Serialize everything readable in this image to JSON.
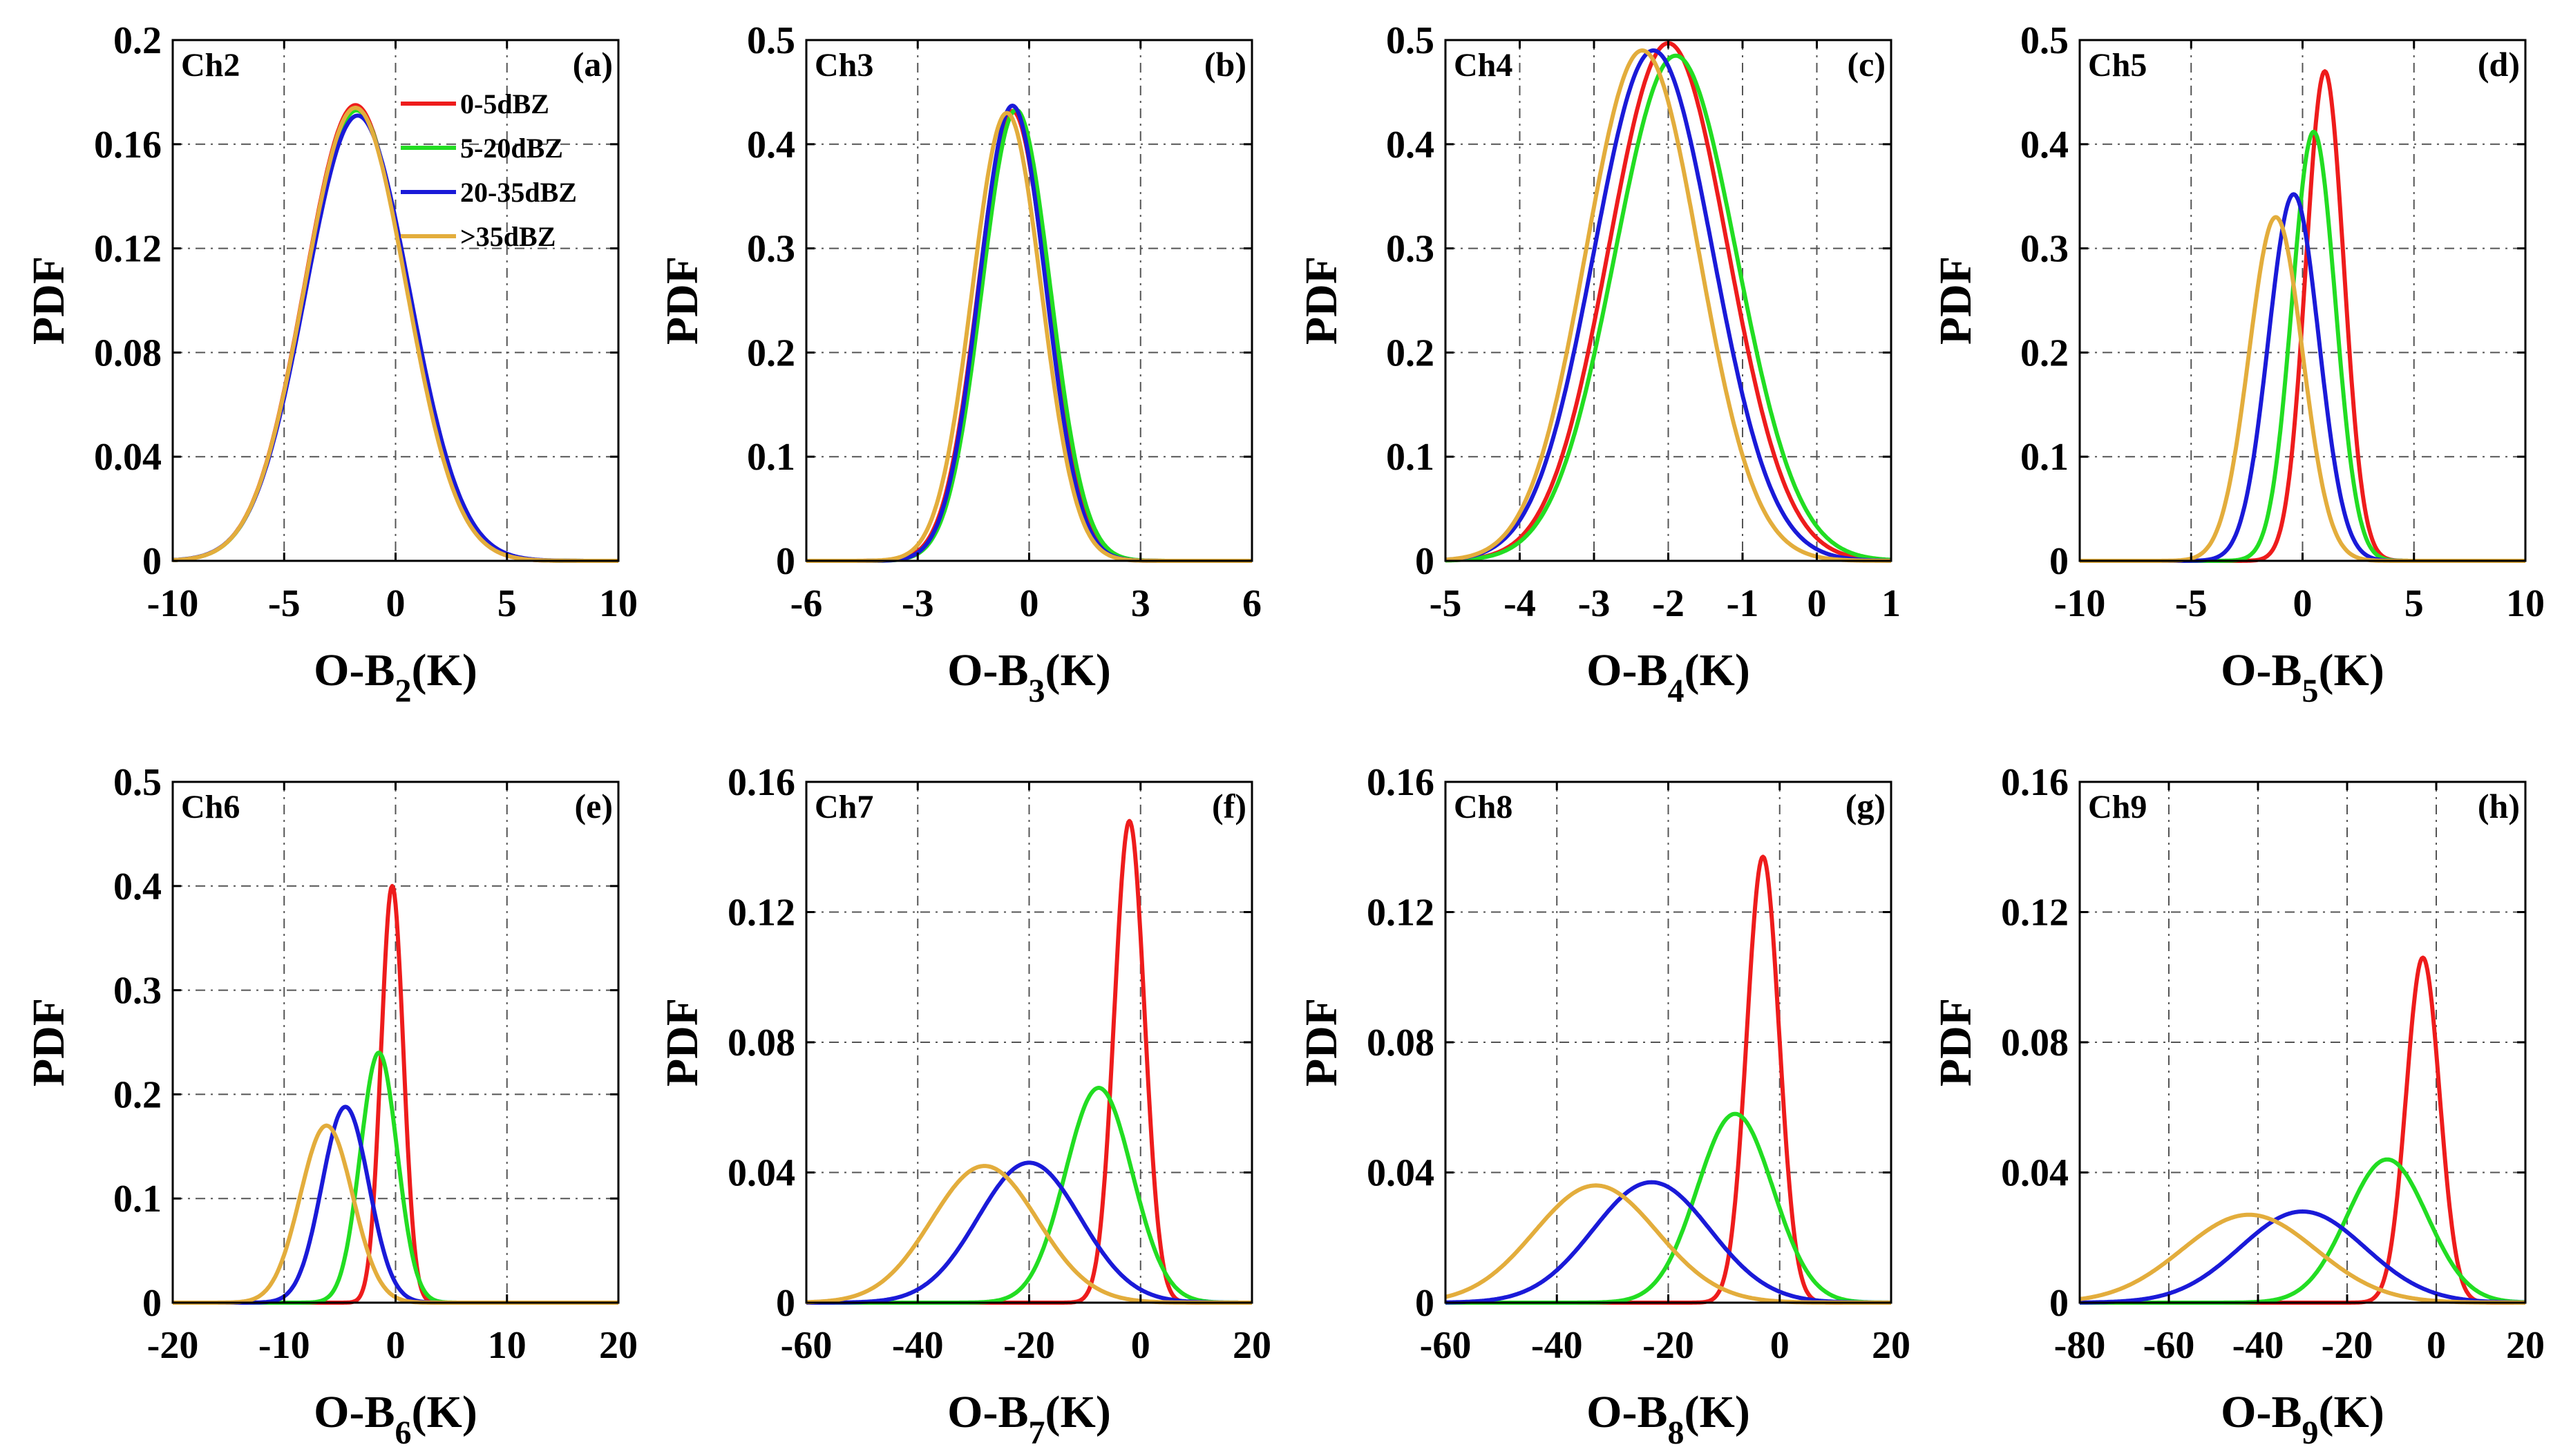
{
  "legend": [
    {
      "label": "0-5dBZ",
      "color": "#ee1c1c"
    },
    {
      "label": "5-20dBZ",
      "color": "#22dd22"
    },
    {
      "label": "20-35dBZ",
      "color": "#1a1ad8"
    },
    {
      "label": ">35dBZ",
      "color": "#e3ad3c"
    }
  ],
  "chart_data": [
    {
      "type": "line",
      "title": "Ch2",
      "panel": "(a)",
      "xlabel": "O-B",
      "xsub": "2",
      "xunit": "(K)",
      "ylabel": "PDF",
      "xlim": [
        -10,
        10
      ],
      "ylim": [
        0,
        0.2
      ],
      "xticks": [
        -10,
        -5,
        0,
        5,
        10
      ],
      "xtick_labels": [
        "-10",
        "-5",
        "0",
        "5",
        "10"
      ],
      "yticks": [
        0,
        0.04,
        0.08,
        0.12,
        0.16,
        0.2
      ],
      "ytick_labels": [
        "0",
        "0.04",
        "0.08",
        "0.12",
        "0.16",
        "0.2"
      ],
      "legend_shown": true,
      "series": [
        {
          "name": "0-5dBZ",
          "mean": -1.8,
          "sd": 2.28,
          "peak": 0.175
        },
        {
          "name": "5-20dBZ",
          "mean": -1.75,
          "sd": 2.3,
          "peak": 0.173
        },
        {
          "name": "20-35dBZ",
          "mean": -1.7,
          "sd": 2.33,
          "peak": 0.171
        },
        {
          "name": ">35dBZ",
          "mean": -1.8,
          "sd": 2.28,
          "peak": 0.174
        }
      ]
    },
    {
      "type": "line",
      "title": "Ch3",
      "panel": "(b)",
      "xlabel": "O-B",
      "xsub": "3",
      "xunit": "(K)",
      "ylabel": "PDF",
      "xlim": [
        -6,
        6
      ],
      "ylim": [
        0,
        0.5
      ],
      "xticks": [
        -6,
        -3,
        0,
        3,
        6
      ],
      "xtick_labels": [
        "-6",
        "-3",
        "0",
        "3",
        "6"
      ],
      "yticks": [
        0,
        0.1,
        0.2,
        0.3,
        0.4,
        0.5
      ],
      "ytick_labels": [
        "0",
        "0.1",
        "0.2",
        "0.3",
        "0.4",
        "0.5"
      ],
      "legend_shown": false,
      "series": [
        {
          "name": "0-5dBZ",
          "mean": -0.45,
          "sd": 0.92,
          "peak": 0.432
        },
        {
          "name": "5-20dBZ",
          "mean": -0.35,
          "sd": 0.92,
          "peak": 0.433
        },
        {
          "name": "20-35dBZ",
          "mean": -0.45,
          "sd": 0.9,
          "peak": 0.437
        },
        {
          "name": ">35dBZ",
          "mean": -0.6,
          "sd": 0.93,
          "peak": 0.43
        }
      ]
    },
    {
      "type": "line",
      "title": "Ch4",
      "panel": "(c)",
      "xlabel": "O-B",
      "xsub": "4",
      "xunit": "(K)",
      "ylabel": "PDF",
      "xlim": [
        -5,
        1
      ],
      "ylim": [
        0,
        0.5
      ],
      "xticks": [
        -5,
        -4,
        -3,
        -2,
        -1,
        0,
        1
      ],
      "xtick_labels": [
        "-5",
        "-4",
        "-3",
        "-2",
        "-1",
        "0",
        "1"
      ],
      "yticks": [
        0,
        0.1,
        0.2,
        0.3,
        0.4,
        0.5
      ],
      "ytick_labels": [
        "0",
        "0.1",
        "0.2",
        "0.3",
        "0.4",
        "0.5"
      ],
      "legend_shown": false,
      "series": [
        {
          "name": "0-5dBZ",
          "mean": -2.0,
          "sd": 0.8,
          "peak": 0.497
        },
        {
          "name": "5-20dBZ",
          "mean": -1.9,
          "sd": 0.82,
          "peak": 0.485
        },
        {
          "name": "20-35dBZ",
          "mean": -2.2,
          "sd": 0.8,
          "peak": 0.49
        },
        {
          "name": ">35dBZ",
          "mean": -2.35,
          "sd": 0.76,
          "peak": 0.49
        }
      ]
    },
    {
      "type": "line",
      "title": "Ch5",
      "panel": "(d)",
      "xlabel": "O-B",
      "xsub": "5",
      "xunit": "(K)",
      "ylabel": "PDF",
      "xlim": [
        -10,
        10
      ],
      "ylim": [
        0,
        0.5
      ],
      "xticks": [
        -10,
        -5,
        0,
        5,
        10
      ],
      "xtick_labels": [
        "-10",
        "-5",
        "0",
        "5",
        "10"
      ],
      "yticks": [
        0,
        0.1,
        0.2,
        0.3,
        0.4,
        0.5
      ],
      "ytick_labels": [
        "0",
        "0.1",
        "0.2",
        "0.3",
        "0.4",
        "0.5"
      ],
      "legend_shown": false,
      "series": [
        {
          "name": "0-5dBZ",
          "mean": 1.0,
          "sd": 0.85,
          "peak": 0.47
        },
        {
          "name": "5-20dBZ",
          "mean": 0.5,
          "sd": 0.97,
          "peak": 0.412
        },
        {
          "name": "20-35dBZ",
          "mean": -0.4,
          "sd": 1.13,
          "peak": 0.352
        },
        {
          "name": ">35dBZ",
          "mean": -1.2,
          "sd": 1.2,
          "peak": 0.33
        }
      ]
    },
    {
      "type": "line",
      "title": "Ch6",
      "panel": "(e)",
      "xlabel": "O-B",
      "xsub": "6",
      "xunit": "(K)",
      "ylabel": "PDF",
      "xlim": [
        -20,
        20
      ],
      "ylim": [
        0,
        0.5
      ],
      "xticks": [
        -20,
        -10,
        0,
        10,
        20
      ],
      "xtick_labels": [
        "-20",
        "-10",
        "0",
        "10",
        "20"
      ],
      "yticks": [
        0,
        0.1,
        0.2,
        0.3,
        0.4,
        0.5
      ],
      "ytick_labels": [
        "0",
        "0.1",
        "0.2",
        "0.3",
        "0.4",
        "0.5"
      ],
      "legend_shown": false,
      "series": [
        {
          "name": "0-5dBZ",
          "mean": -0.3,
          "sd": 1.0,
          "peak": 0.4
        },
        {
          "name": "5-20dBZ",
          "mean": -1.5,
          "sd": 1.65,
          "peak": 0.24
        },
        {
          "name": "20-35dBZ",
          "mean": -4.5,
          "sd": 2.1,
          "peak": 0.188
        },
        {
          "name": ">35dBZ",
          "mean": -6.2,
          "sd": 2.35,
          "peak": 0.17
        }
      ]
    },
    {
      "type": "line",
      "title": "Ch7",
      "panel": "(f)",
      "xlabel": "O-B",
      "xsub": "7",
      "xunit": "(K)",
      "ylabel": "PDF",
      "xlim": [
        -60,
        20
      ],
      "ylim": [
        0,
        0.16
      ],
      "xticks": [
        -60,
        -40,
        -20,
        0,
        20
      ],
      "xtick_labels": [
        "-60",
        "-40",
        "-20",
        "0",
        "20"
      ],
      "yticks": [
        0,
        0.04,
        0.08,
        0.12,
        0.16
      ],
      "ytick_labels": [
        "0",
        "0.04",
        "0.08",
        "0.12",
        "0.16"
      ],
      "legend_shown": false,
      "series": [
        {
          "name": "0-5dBZ",
          "mean": -2.0,
          "sd": 2.7,
          "peak": 0.148
        },
        {
          "name": "5-20dBZ",
          "mean": -7.5,
          "sd": 6.0,
          "peak": 0.066
        },
        {
          "name": "20-35dBZ",
          "mean": -20.0,
          "sd": 9.2,
          "peak": 0.043
        },
        {
          "name": ">35dBZ",
          "mean": -28.0,
          "sd": 9.5,
          "peak": 0.042
        }
      ]
    },
    {
      "type": "line",
      "title": "Ch8",
      "panel": "(g)",
      "xlabel": "O-B",
      "xsub": "8",
      "xunit": "(K)",
      "ylabel": "PDF",
      "xlim": [
        -60,
        20
      ],
      "ylim": [
        0,
        0.16
      ],
      "xticks": [
        -60,
        -40,
        -20,
        0,
        20
      ],
      "xtick_labels": [
        "-60",
        "-40",
        "-20",
        "0",
        "20"
      ],
      "yticks": [
        0,
        0.04,
        0.08,
        0.12,
        0.16
      ],
      "ytick_labels": [
        "0",
        "0.04",
        "0.08",
        "0.12",
        "0.16"
      ],
      "legend_shown": false,
      "series": [
        {
          "name": "0-5dBZ",
          "mean": -3.0,
          "sd": 2.9,
          "peak": 0.137
        },
        {
          "name": "5-20dBZ",
          "mean": -8.0,
          "sd": 6.8,
          "peak": 0.058
        },
        {
          "name": "20-35dBZ",
          "mean": -23.0,
          "sd": 10.5,
          "peak": 0.037
        },
        {
          "name": ">35dBZ",
          "mean": -33.0,
          "sd": 11.0,
          "peak": 0.036
        }
      ]
    },
    {
      "type": "line",
      "title": "Ch9",
      "panel": "(h)",
      "xlabel": "O-B",
      "xsub": "9",
      "xunit": "(K)",
      "ylabel": "PDF",
      "xlim": [
        -80,
        20
      ],
      "ylim": [
        0,
        0.16
      ],
      "xticks": [
        -80,
        -60,
        -40,
        -20,
        0,
        20
      ],
      "xtick_labels": [
        "-80",
        "-60",
        "-40",
        "-20",
        "0",
        "20"
      ],
      "yticks": [
        0,
        0.04,
        0.08,
        0.12,
        0.16
      ],
      "ytick_labels": [
        "0",
        "0.04",
        "0.08",
        "0.12",
        "0.16"
      ],
      "legend_shown": false,
      "series": [
        {
          "name": "0-5dBZ",
          "mean": -3.0,
          "sd": 3.75,
          "peak": 0.106
        },
        {
          "name": "5-20dBZ",
          "mean": -11.0,
          "sd": 9.0,
          "peak": 0.044
        },
        {
          "name": "20-35dBZ",
          "mean": -30.0,
          "sd": 14.0,
          "peak": 0.028
        },
        {
          "name": ">35dBZ",
          "mean": -42.0,
          "sd": 15.0,
          "peak": 0.027
        }
      ]
    }
  ]
}
